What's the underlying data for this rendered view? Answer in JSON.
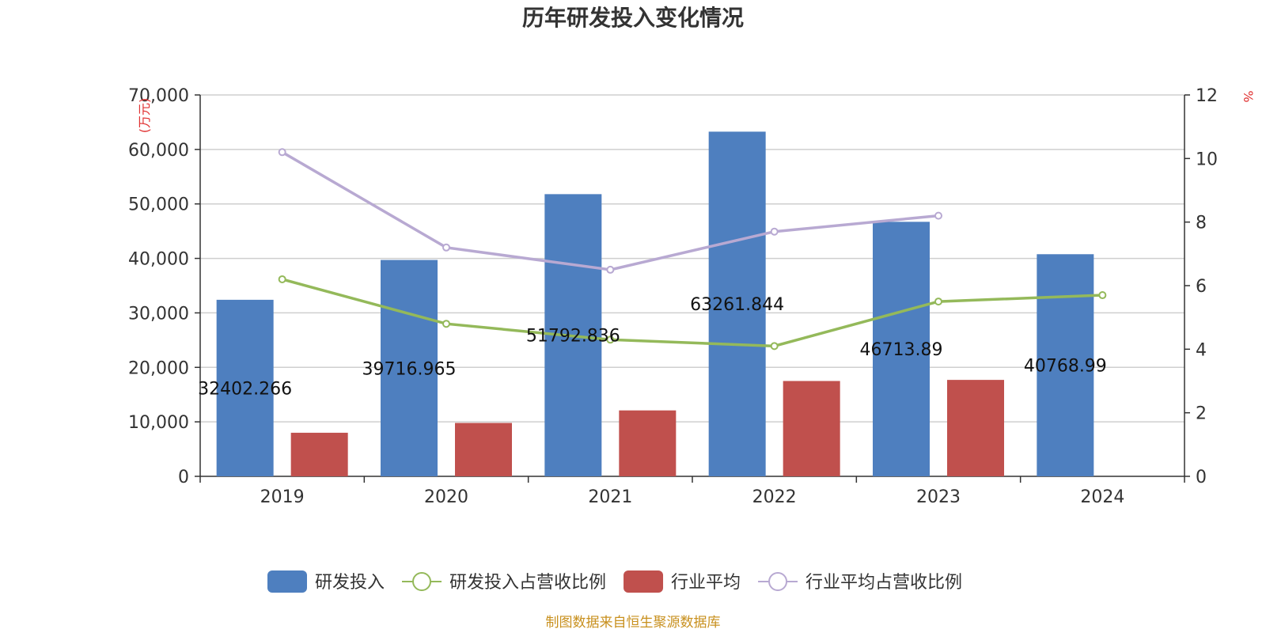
{
  "chart_data": {
    "type": "bar",
    "title": "历年研发投入变化情况",
    "categories": [
      "2019",
      "2020",
      "2021",
      "2022",
      "2023",
      "2024"
    ],
    "y_left": {
      "unit": "(万元)",
      "ylim": [
        0,
        70000
      ],
      "ticks": [
        "0",
        "10,000",
        "20,000",
        "30,000",
        "40,000",
        "50,000",
        "60,000",
        "70,000"
      ]
    },
    "y_right": {
      "unit": "%",
      "ylim": [
        0,
        12
      ],
      "ticks": [
        "0",
        "2",
        "4",
        "6",
        "8",
        "10",
        "12"
      ]
    },
    "grid": true,
    "legend_position": "bottom",
    "series": [
      {
        "name": "研发投入",
        "kind": "bar",
        "axis": "left",
        "color": "#4e7fbf",
        "values": [
          32402.266,
          39716.965,
          51792.836,
          63261.844,
          46713.89,
          40768.99
        ],
        "labels": [
          "32402.266",
          "39716.965",
          "51792.836",
          "63261.844",
          "46713.89",
          "40768.99"
        ]
      },
      {
        "name": "研发投入占营收比例",
        "kind": "line",
        "axis": "right",
        "color": "#94b95a",
        "values": [
          6.2,
          4.8,
          4.3,
          4.1,
          5.5,
          5.7
        ]
      },
      {
        "name": "行业平均",
        "kind": "bar",
        "axis": "left",
        "color": "#c0504d",
        "values": [
          8000,
          9800,
          12100,
          17500,
          17700,
          null
        ]
      },
      {
        "name": "行业平均占营收比例",
        "kind": "line",
        "axis": "right",
        "color": "#b8a9d2",
        "values": [
          10.2,
          7.2,
          6.5,
          7.7,
          8.2,
          null
        ]
      }
    ],
    "source": "制图数据来自恒生聚源数据库"
  }
}
